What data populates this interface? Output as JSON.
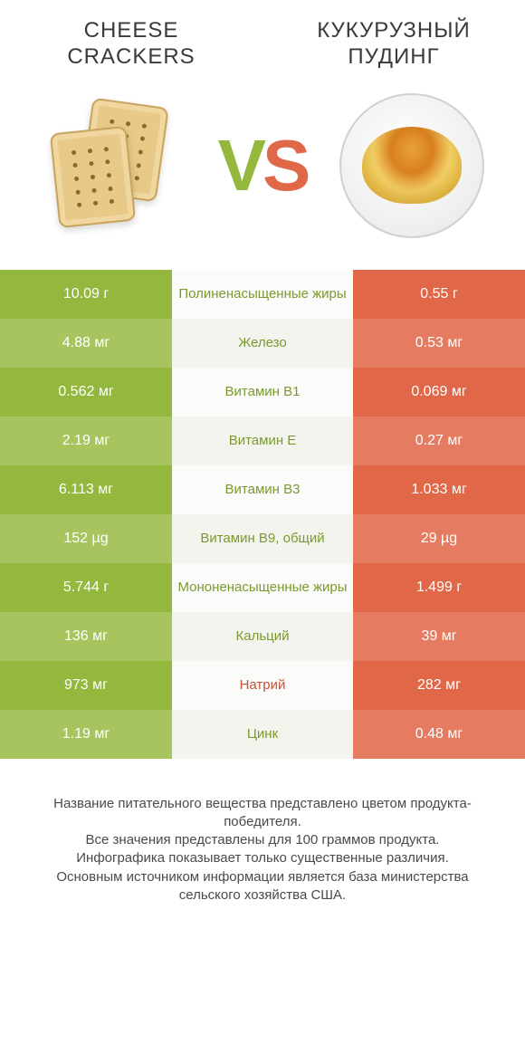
{
  "header": {
    "left_title": "CHEESE CRACKERS",
    "right_title": "КУКУРУЗНЫЙ ПУДИНГ",
    "vs_v": "V",
    "vs_s": "S"
  },
  "colors": {
    "green_dark": "#94b83d",
    "green_light": "#a8c45e",
    "orange_dark": "#e06849",
    "orange_light": "#e57c61",
    "mid_light": "#fbfbf9",
    "mid_dark": "#f4f4ef",
    "label_green": "#7a9a2e",
    "label_orange": "#c9523a"
  },
  "rows": [
    {
      "left": "10.09 г",
      "label": "Полиненасыщенные жиры",
      "right": "0.55 г",
      "winner": "left"
    },
    {
      "left": "4.88 мг",
      "label": "Железо",
      "right": "0.53 мг",
      "winner": "left"
    },
    {
      "left": "0.562 мг",
      "label": "Витамин B1",
      "right": "0.069 мг",
      "winner": "left"
    },
    {
      "left": "2.19 мг",
      "label": "Витамин E",
      "right": "0.27 мг",
      "winner": "left"
    },
    {
      "left": "6.113 мг",
      "label": "Витамин B3",
      "right": "1.033 мг",
      "winner": "left"
    },
    {
      "left": "152 µg",
      "label": "Витамин B9, общий",
      "right": "29 µg",
      "winner": "left"
    },
    {
      "left": "5.744 г",
      "label": "Мононенасыщенные жиры",
      "right": "1.499 г",
      "winner": "left"
    },
    {
      "left": "136 мг",
      "label": "Кальций",
      "right": "39 мг",
      "winner": "left"
    },
    {
      "left": "973 мг",
      "label": "Натрий",
      "right": "282 мг",
      "winner": "right"
    },
    {
      "left": "1.19 мг",
      "label": "Цинк",
      "right": "0.48 мг",
      "winner": "left"
    }
  ],
  "footer": {
    "line1": "Название питательного вещества представлено цветом продукта-победителя.",
    "line2": "Все значения представлены для 100 граммов продукта.",
    "line3": "Инфографика показывает только существенные различия.",
    "line4": "Основным источником информации является база министерства сельского хозяйства США."
  }
}
